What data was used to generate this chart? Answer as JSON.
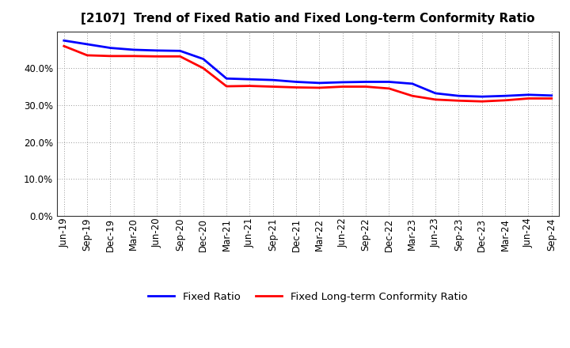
{
  "title": "[2107]  Trend of Fixed Ratio and Fixed Long-term Conformity Ratio",
  "x_labels": [
    "Jun-19",
    "Sep-19",
    "Dec-19",
    "Mar-20",
    "Jun-20",
    "Sep-20",
    "Dec-20",
    "Mar-21",
    "Jun-21",
    "Sep-21",
    "Dec-21",
    "Mar-22",
    "Jun-22",
    "Sep-22",
    "Dec-22",
    "Mar-23",
    "Jun-23",
    "Sep-23",
    "Dec-23",
    "Mar-24",
    "Jun-24",
    "Sep-24"
  ],
  "fixed_ratio": [
    47.5,
    46.5,
    45.5,
    45.0,
    44.8,
    44.7,
    42.5,
    37.2,
    37.0,
    36.8,
    36.3,
    36.0,
    36.2,
    36.3,
    36.3,
    35.8,
    33.2,
    32.5,
    32.3,
    32.5,
    32.8,
    32.6
  ],
  "fixed_lt_ratio": [
    46.0,
    43.5,
    43.3,
    43.3,
    43.2,
    43.2,
    40.0,
    35.1,
    35.2,
    35.0,
    34.8,
    34.7,
    35.0,
    35.0,
    34.5,
    32.5,
    31.5,
    31.2,
    31.0,
    31.3,
    31.8,
    31.8
  ],
  "fixed_ratio_color": "#0000FF",
  "fixed_lt_ratio_color": "#FF0000",
  "ylim": [
    0,
    50
  ],
  "yticks": [
    0,
    10,
    20,
    30,
    40
  ],
  "background_color": "#FFFFFF",
  "plot_bg_color": "#FFFFFF",
  "grid_color": "#999999",
  "line_width": 2.0,
  "legend_fixed_ratio": "Fixed Ratio",
  "legend_fixed_lt": "Fixed Long-term Conformity Ratio",
  "title_fontsize": 11,
  "tick_fontsize": 8.5,
  "legend_fontsize": 9.5
}
